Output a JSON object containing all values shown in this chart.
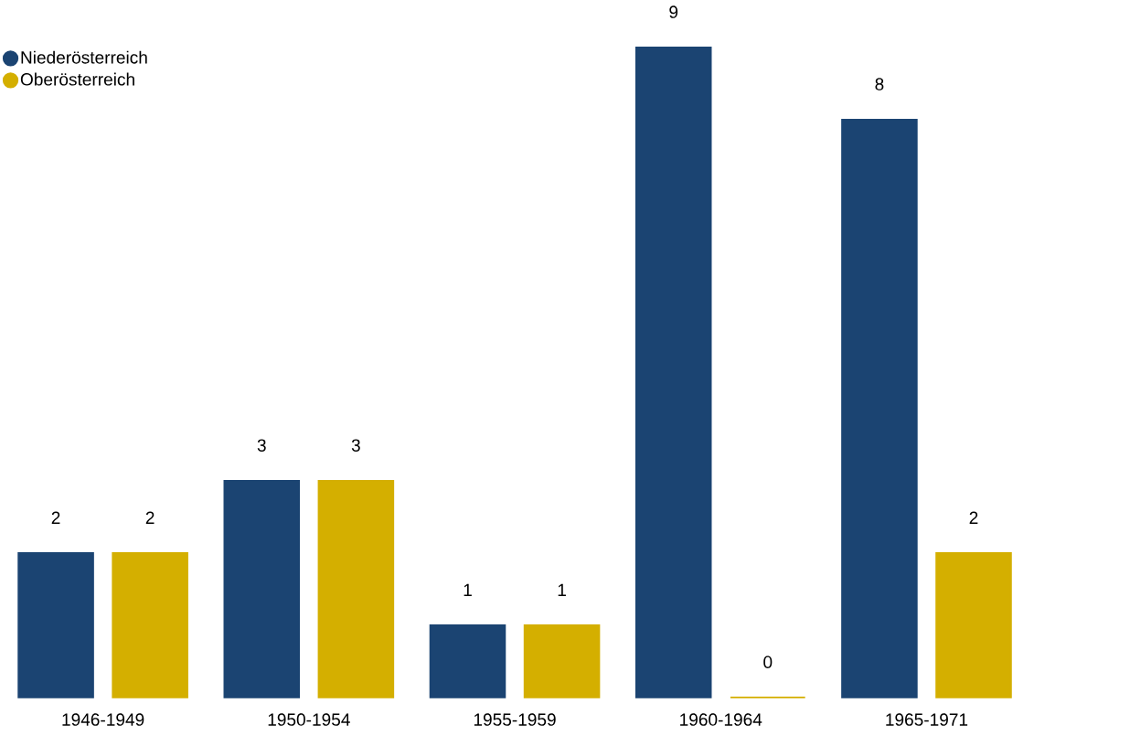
{
  "chart_data": {
    "type": "bar",
    "categories": [
      "1946-1949",
      "1950-1954",
      "1955-1959",
      "1960-1964",
      "1965-1971"
    ],
    "series": [
      {
        "name": "Niederösterreich",
        "color": "#1b4472",
        "values": [
          2,
          3,
          1,
          9,
          8
        ]
      },
      {
        "name": "Oberösterreich",
        "color": "#d4af00",
        "values": [
          2,
          3,
          1,
          0,
          2
        ]
      }
    ],
    "data_labels": true,
    "legend": "top left"
  }
}
